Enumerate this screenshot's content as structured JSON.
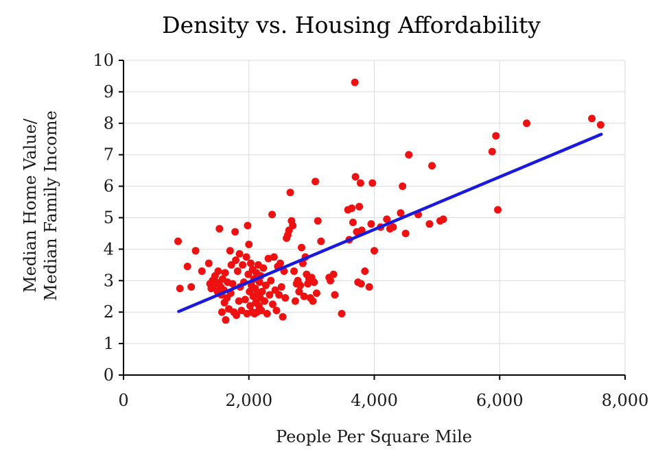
{
  "chart_data": {
    "type": "scatter",
    "title": "Density vs. Housing Affordability",
    "xlabel": "People Per Square Mile",
    "ylabel_lines": [
      "Median Home Value/",
      "Median Family Income"
    ],
    "xlim": [
      0,
      8000
    ],
    "ylim": [
      0,
      10
    ],
    "x_ticks": [
      0,
      2000,
      4000,
      6000,
      8000
    ],
    "x_tick_labels": [
      "0",
      "2,000",
      "4,000",
      "6,000",
      "8,000"
    ],
    "y_ticks": [
      0,
      1,
      2,
      3,
      4,
      5,
      6,
      7,
      8,
      9,
      10
    ],
    "y_tick_labels": [
      "0",
      "1",
      "2",
      "3",
      "4",
      "5",
      "6",
      "7",
      "8",
      "9",
      "10"
    ],
    "grid": true,
    "colors": {
      "points": "#ee1111",
      "trendline": "#1a1adf"
    },
    "trendline": {
      "x": [
        880,
        7620
      ],
      "y": [
        2.02,
        7.65
      ]
    },
    "points": [
      [
        870,
        4.25
      ],
      [
        900,
        2.75
      ],
      [
        1020,
        3.45
      ],
      [
        1080,
        2.8
      ],
      [
        1150,
        3.95
      ],
      [
        1250,
        3.3
      ],
      [
        1360,
        3.55
      ],
      [
        1380,
        2.9
      ],
      [
        1400,
        2.75
      ],
      [
        1420,
        3.0
      ],
      [
        1440,
        2.85
      ],
      [
        1460,
        3.15
      ],
      [
        1480,
        2.95
      ],
      [
        1500,
        2.65
      ],
      [
        1510,
        3.3
      ],
      [
        1520,
        2.9
      ],
      [
        1530,
        4.65
      ],
      [
        1550,
        2.8
      ],
      [
        1560,
        2.55
      ],
      [
        1570,
        2.0
      ],
      [
        1580,
        3.05
      ],
      [
        1600,
        2.7
      ],
      [
        1610,
        2.3
      ],
      [
        1620,
        3.25
      ],
      [
        1630,
        1.75
      ],
      [
        1650,
        2.45
      ],
      [
        1660,
        2.95
      ],
      [
        1680,
        2.1
      ],
      [
        1700,
        3.95
      ],
      [
        1710,
        2.6
      ],
      [
        1720,
        3.5
      ],
      [
        1740,
        2.9
      ],
      [
        1760,
        2.0
      ],
      [
        1780,
        4.55
      ],
      [
        1790,
        3.65
      ],
      [
        1800,
        1.9
      ],
      [
        1820,
        3.3
      ],
      [
        1840,
        2.35
      ],
      [
        1850,
        3.85
      ],
      [
        1860,
        2.8
      ],
      [
        1880,
        2.05
      ],
      [
        1900,
        3.5
      ],
      [
        1920,
        2.95
      ],
      [
        1940,
        2.4
      ],
      [
        1960,
        3.75
      ],
      [
        1970,
        1.95
      ],
      [
        1980,
        4.75
      ],
      [
        1990,
        3.2
      ],
      [
        2000,
        4.15
      ],
      [
        2010,
        2.65
      ],
      [
        2020,
        2.2
      ],
      [
        2030,
        3.55
      ],
      [
        2040,
        2.85
      ],
      [
        2050,
        2.0
      ],
      [
        2060,
        3.35
      ],
      [
        2070,
        2.5
      ],
      [
        2080,
        3.05
      ],
      [
        2090,
        1.95
      ],
      [
        2100,
        2.75
      ],
      [
        2110,
        2.3
      ],
      [
        2120,
        3.25
      ],
      [
        2130,
        2.0
      ],
      [
        2140,
        2.6
      ],
      [
        2150,
        3.5
      ],
      [
        2160,
        2.2
      ],
      [
        2170,
        2.95
      ],
      [
        2180,
        2.45
      ],
      [
        2190,
        3.15
      ],
      [
        2200,
        2.05
      ],
      [
        2210,
        2.65
      ],
      [
        2230,
        3.4
      ],
      [
        2250,
        2.35
      ],
      [
        2270,
        2.85
      ],
      [
        2290,
        1.95
      ],
      [
        2310,
        3.7
      ],
      [
        2330,
        2.55
      ],
      [
        2350,
        3.0
      ],
      [
        2370,
        5.1
      ],
      [
        2380,
        2.25
      ],
      [
        2400,
        3.75
      ],
      [
        2420,
        2.7
      ],
      [
        2440,
        2.05
      ],
      [
        2460,
        3.45
      ],
      [
        2480,
        2.55
      ],
      [
        2500,
        3.55
      ],
      [
        2520,
        2.8
      ],
      [
        2540,
        1.85
      ],
      [
        2560,
        3.3
      ],
      [
        2580,
        2.45
      ],
      [
        2600,
        4.35
      ],
      [
        2620,
        4.45
      ],
      [
        2640,
        4.6
      ],
      [
        2660,
        5.8
      ],
      [
        2680,
        4.9
      ],
      [
        2700,
        4.75
      ],
      [
        2720,
        3.3
      ],
      [
        2740,
        2.35
      ],
      [
        2760,
        2.9
      ],
      [
        2780,
        3.0
      ],
      [
        2800,
        2.65
      ],
      [
        2820,
        2.85
      ],
      [
        2840,
        4.05
      ],
      [
        2860,
        3.55
      ],
      [
        2880,
        2.5
      ],
      [
        2900,
        3.75
      ],
      [
        2920,
        3.2
      ],
      [
        2940,
        2.9
      ],
      [
        2960,
        3.05
      ],
      [
        2980,
        2.45
      ],
      [
        3000,
        3.1
      ],
      [
        3020,
        2.35
      ],
      [
        3040,
        2.95
      ],
      [
        3060,
        6.15
      ],
      [
        3080,
        2.6
      ],
      [
        3100,
        4.9
      ],
      [
        3150,
        4.25
      ],
      [
        3280,
        3.1
      ],
      [
        3300,
        3.0
      ],
      [
        3350,
        3.2
      ],
      [
        3370,
        2.55
      ],
      [
        3480,
        1.95
      ],
      [
        3580,
        5.25
      ],
      [
        3600,
        4.3
      ],
      [
        3640,
        5.3
      ],
      [
        3660,
        4.85
      ],
      [
        3690,
        9.3
      ],
      [
        3700,
        6.3
      ],
      [
        3720,
        4.55
      ],
      [
        3740,
        2.95
      ],
      [
        3760,
        5.35
      ],
      [
        3780,
        6.1
      ],
      [
        3790,
        2.9
      ],
      [
        3800,
        4.6
      ],
      [
        3850,
        3.3
      ],
      [
        3920,
        2.8
      ],
      [
        3950,
        4.8
      ],
      [
        3970,
        6.1
      ],
      [
        4000,
        3.95
      ],
      [
        4100,
        4.7
      ],
      [
        4200,
        4.95
      ],
      [
        4250,
        4.65
      ],
      [
        4300,
        4.7
      ],
      [
        4420,
        5.15
      ],
      [
        4450,
        6.0
      ],
      [
        4500,
        4.5
      ],
      [
        4550,
        7.0
      ],
      [
        4700,
        5.1
      ],
      [
        4880,
        4.8
      ],
      [
        4920,
        6.65
      ],
      [
        5050,
        4.9
      ],
      [
        5100,
        4.95
      ],
      [
        5880,
        7.1
      ],
      [
        5940,
        7.6
      ],
      [
        5970,
        5.25
      ],
      [
        6430,
        8.0
      ],
      [
        7470,
        8.15
      ],
      [
        7610,
        7.95
      ]
    ]
  }
}
